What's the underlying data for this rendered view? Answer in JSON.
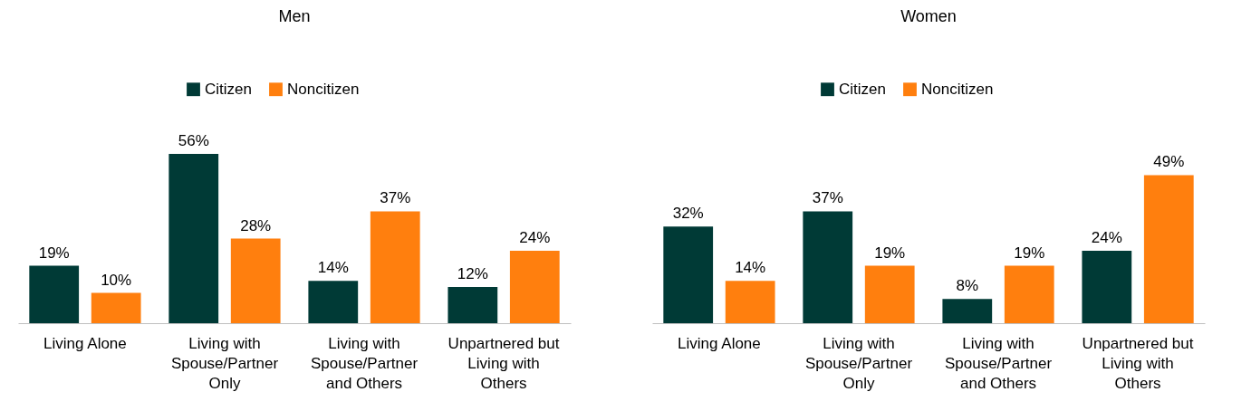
{
  "chart_data": [
    {
      "type": "bar",
      "title": "Men",
      "categories": [
        "Living Alone",
        "Living with Spouse/Partner Only",
        "Living with Spouse/Partner and Others",
        "Unpartnered but Living with Others"
      ],
      "series": [
        {
          "name": "Citizen",
          "color": "#003a36",
          "values": [
            19,
            56,
            14,
            12
          ],
          "value_labels": [
            "19%",
            "56%",
            "14%",
            "12%"
          ]
        },
        {
          "name": "Noncitizen",
          "color": "#ff7f0e",
          "values": [
            10,
            28,
            37,
            24
          ],
          "value_labels": [
            "10%",
            "28%",
            "37%",
            "24%"
          ]
        }
      ],
      "legend": "top"
    },
    {
      "type": "bar",
      "title": "Women",
      "categories": [
        "Living Alone",
        "Living with Spouse/Partner Only",
        "Living with Spouse/Partner and Others",
        "Unpartnered but Living with Others"
      ],
      "series": [
        {
          "name": "Citizen",
          "color": "#003a36",
          "values": [
            32,
            37,
            8,
            24
          ],
          "value_labels": [
            "32%",
            "37%",
            "8%",
            "24%"
          ]
        },
        {
          "name": "Noncitizen",
          "color": "#ff7f0e",
          "values": [
            14,
            19,
            19,
            49
          ],
          "value_labels": [
            "14%",
            "19%",
            "19%",
            "49%"
          ]
        }
      ],
      "legend": "top"
    }
  ]
}
